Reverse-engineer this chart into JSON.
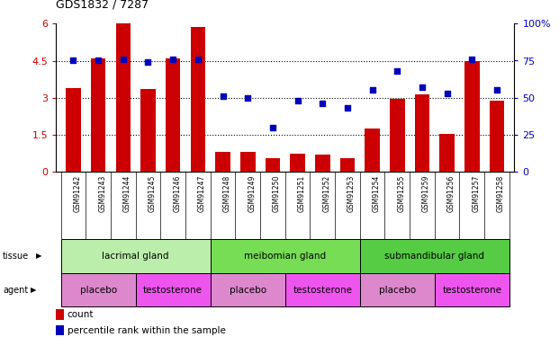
{
  "title": "GDS1832 / 7287",
  "samples": [
    "GSM91242",
    "GSM91243",
    "GSM91244",
    "GSM91245",
    "GSM91246",
    "GSM91247",
    "GSM91248",
    "GSM91249",
    "GSM91250",
    "GSM91251",
    "GSM91252",
    "GSM91253",
    "GSM91254",
    "GSM91255",
    "GSM91259",
    "GSM91256",
    "GSM91257",
    "GSM91258"
  ],
  "bar_values": [
    3.4,
    4.6,
    6.0,
    3.35,
    4.6,
    5.85,
    0.8,
    0.8,
    0.55,
    0.75,
    0.7,
    0.55,
    1.75,
    2.95,
    3.15,
    1.55,
    4.5,
    2.9
  ],
  "dot_values": [
    75,
    75,
    76,
    74,
    76,
    76,
    51,
    50,
    30,
    48,
    46,
    43,
    55,
    68,
    57,
    53,
    76,
    55
  ],
  "bar_color": "#cc0000",
  "dot_color": "#0000bb",
  "ylim_left": [
    0,
    6
  ],
  "ylim_right": [
    0,
    100
  ],
  "yticks_left": [
    0,
    1.5,
    3.0,
    4.5,
    6
  ],
  "yticks_right": [
    0,
    25,
    50,
    75,
    100
  ],
  "yticklabels_left": [
    "0",
    "1.5",
    "3",
    "4.5",
    "6"
  ],
  "yticklabels_right": [
    "0",
    "25",
    "50",
    "75",
    "100%"
  ],
  "tissue_groups": [
    {
      "label": "lacrimal gland",
      "start": 0,
      "end": 5,
      "color": "#bbeeaa"
    },
    {
      "label": "meibomian gland",
      "start": 6,
      "end": 11,
      "color": "#77dd55"
    },
    {
      "label": "submandibular gland",
      "start": 12,
      "end": 17,
      "color": "#55cc44"
    }
  ],
  "agent_groups": [
    {
      "label": "placebo",
      "start": 0,
      "end": 2,
      "color": "#dd88cc"
    },
    {
      "label": "testosterone",
      "start": 3,
      "end": 5,
      "color": "#ee55ee"
    },
    {
      "label": "placebo",
      "start": 6,
      "end": 8,
      "color": "#dd88cc"
    },
    {
      "label": "testosterone",
      "start": 9,
      "end": 11,
      "color": "#ee55ee"
    },
    {
      "label": "placebo",
      "start": 12,
      "end": 14,
      "color": "#dd88cc"
    },
    {
      "label": "testosterone",
      "start": 15,
      "end": 17,
      "color": "#ee55ee"
    }
  ],
  "legend_count_label": "count",
  "legend_pct_label": "percentile rank within the sample",
  "tissue_label": "tissue",
  "agent_label": "agent",
  "background_color": "#ffffff",
  "plot_bg_color": "#ffffff",
  "tick_area_color": "#c8c8c8"
}
